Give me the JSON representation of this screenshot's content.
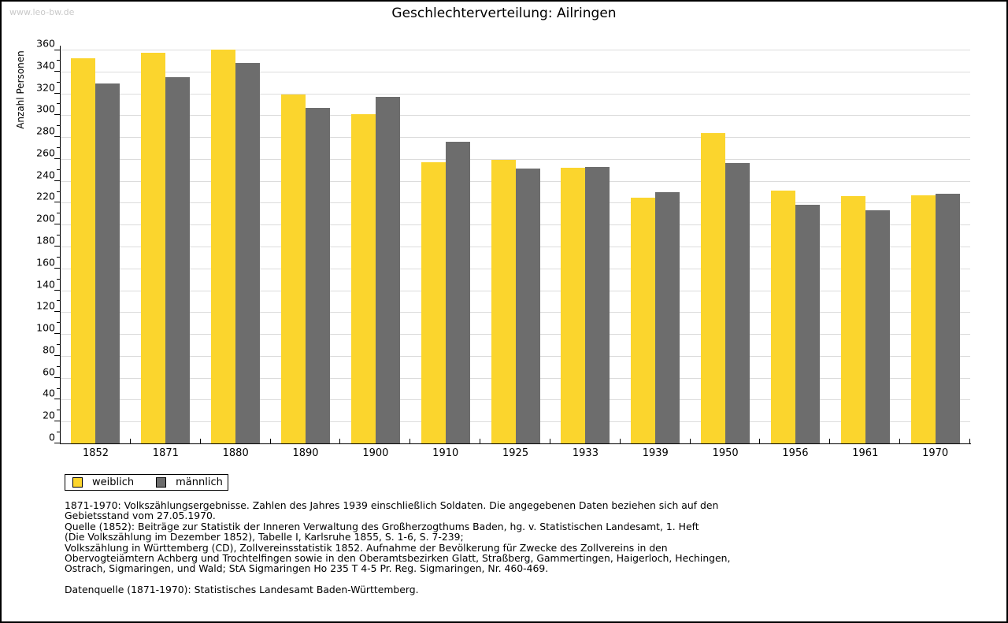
{
  "watermark": "www.leo-bw.de",
  "header": {
    "title": "Geschlechterverteilung: Ailringen"
  },
  "chart_data": {
    "type": "bar",
    "title": "Geschlechterverteilung: Ailringen",
    "xlabel": "",
    "ylabel": "Anzahl Personen",
    "categories": [
      "1852",
      "1871",
      "1880",
      "1890",
      "1900",
      "1910",
      "1925",
      "1933",
      "1939",
      "1950",
      "1956",
      "1961",
      "1970"
    ],
    "series": [
      {
        "name": "weiblich",
        "color": "#fbd52d",
        "values": [
          352,
          357,
          360,
          319,
          301,
          257,
          259,
          252,
          225,
          284,
          231,
          226,
          227
        ]
      },
      {
        "name": "männlich",
        "color": "#6d6d6d",
        "values": [
          329,
          335,
          348,
          307,
          317,
          276,
          251,
          253,
          230,
          256,
          218,
          213,
          228
        ]
      }
    ],
    "ylim": [
      0,
      360
    ],
    "ytick_major_step": 20,
    "ytick_minor_step": 10,
    "grid": true,
    "gridline_color": "#dcdcdc",
    "legend_position": "bottom-left"
  },
  "legend": {
    "items": [
      {
        "label": "weiblich",
        "color": "#fbd52d"
      },
      {
        "label": "männlich",
        "color": "#6d6d6d"
      }
    ]
  },
  "footnotes": {
    "lines": [
      "1871-1970: Volkszählungsergebnisse. Zahlen des Jahres 1939 einschließlich Soldaten. Die angegebenen Daten beziehen sich auf den",
      "Gebietsstand vom 27.05.1970.",
      "Quelle (1852): Beiträge zur Statistik der Inneren Verwaltung des Großherzogthums Baden, hg. v. Statistischen Landesamt, 1. Heft",
      "(Die Volkszählung im Dezember 1852), Tabelle I, Karlsruhe 1855, S. 1-6, S. 7-239;",
      "Volkszählung in Württemberg (CD), Zollvereinsstatistik 1852. Aufnahme der Bevölkerung für Zwecke des Zollvereins in den",
      "Obervogteiämtern Achberg und Trochtelfingen sowie in den Oberamtsbezirken Glatt, Straßberg, Gammertingen, Haigerloch, Hechingen,",
      "Ostrach, Sigmaringen, und Wald; StA Sigmaringen Ho 235 T 4-5 Pr. Reg. Sigmaringen, Nr. 460-469."
    ],
    "datasource": "Datenquelle (1871-1970): Statistisches Landesamt Baden-Württemberg."
  },
  "colors": {
    "female_bar": "#fbd52d",
    "male_bar": "#6d6d6d",
    "gridline": "#dcdcdc",
    "axis": "#000000",
    "watermark": "#c9c9c9",
    "background": "#ffffff"
  }
}
